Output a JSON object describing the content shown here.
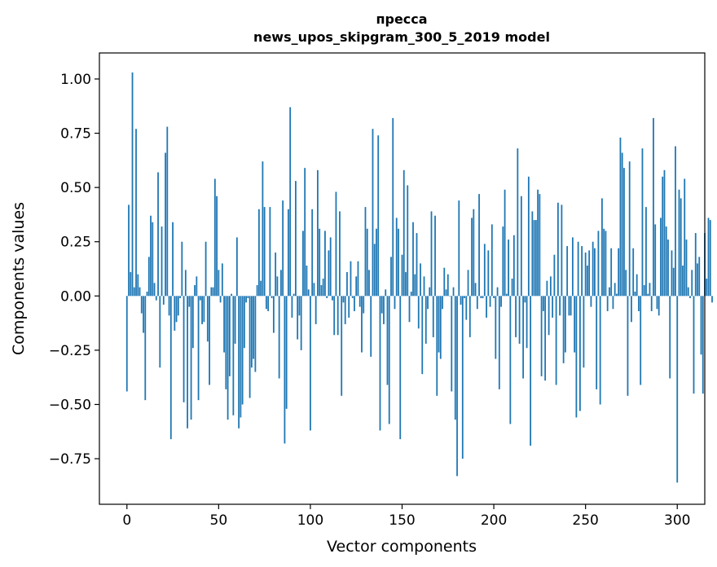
{
  "chart_data": {
    "type": "bar",
    "title": "пресса",
    "subtitle": "news_upos_skipgram_300_5_2019 model",
    "xlabel": "Vector components",
    "ylabel": "Components values",
    "xlim": [
      -15,
      315
    ],
    "ylim": [
      -0.96,
      1.12
    ],
    "xticks": [
      0,
      50,
      100,
      150,
      200,
      250,
      300
    ],
    "yticks": [
      -0.75,
      -0.5,
      -0.25,
      0.0,
      0.25,
      0.5,
      0.75,
      1.0
    ],
    "ytick_labels": [
      "−0.75",
      "−0.50",
      "−0.25",
      "0.00",
      "0.25",
      "0.50",
      "0.75",
      "1.00"
    ],
    "bar_color": "#1f77b4",
    "grid": false,
    "values": [
      -0.44,
      0.42,
      0.11,
      1.03,
      0.04,
      0.77,
      0.1,
      0.04,
      -0.08,
      -0.17,
      -0.48,
      0.02,
      0.18,
      0.37,
      0.34,
      0.06,
      -0.02,
      0.57,
      -0.33,
      0.32,
      -0.04,
      0.66,
      0.78,
      -0.09,
      -0.66,
      0.34,
      -0.16,
      -0.12,
      -0.09,
      -0.01,
      0.25,
      -0.49,
      0.12,
      -0.61,
      -0.05,
      -0.57,
      -0.24,
      0.05,
      0.09,
      -0.48,
      -0.02,
      -0.13,
      -0.12,
      0.25,
      -0.21,
      -0.41,
      0.04,
      0.04,
      0.54,
      0.46,
      0.12,
      -0.03,
      0.15,
      -0.26,
      -0.43,
      -0.57,
      -0.37,
      0.01,
      -0.55,
      -0.22,
      0.27,
      -0.61,
      -0.56,
      -0.5,
      -0.24,
      -0.03,
      -0.01,
      -0.47,
      -0.33,
      -0.29,
      -0.35,
      0.05,
      0.4,
      0.07,
      0.62,
      0.41,
      -0.06,
      -0.07,
      0.41,
      -0.01,
      -0.17,
      0.2,
      0.09,
      -0.38,
      0.12,
      0.44,
      -0.68,
      -0.52,
      0.4,
      0.87,
      -0.1,
      0.01,
      0.53,
      -0.2,
      -0.09,
      -0.25,
      0.3,
      0.59,
      0.14,
      0.03,
      -0.62,
      0.4,
      0.06,
      -0.13,
      0.58,
      0.31,
      0.05,
      0.08,
      0.3,
      -0.01,
      0.21,
      0.27,
      -0.02,
      -0.18,
      0.48,
      -0.18,
      0.39,
      -0.46,
      -0.03,
      -0.13,
      0.11,
      -0.1,
      0.16,
      -0.01,
      -0.07,
      0.09,
      0.16,
      -0.05,
      -0.26,
      -0.08,
      0.41,
      0.31,
      0.12,
      -0.28,
      0.77,
      0.24,
      0.31,
      0.74,
      -0.62,
      -0.08,
      -0.13,
      0.03,
      -0.41,
      -0.59,
      0.18,
      0.82,
      -0.06,
      0.36,
      0.31,
      -0.66,
      0.19,
      0.58,
      0.11,
      0.51,
      -0.12,
      0.02,
      0.34,
      0.1,
      0.29,
      -0.15,
      0.15,
      -0.36,
      0.09,
      -0.22,
      -0.06,
      0.04,
      0.39,
      -0.19,
      0.37,
      -0.46,
      -0.26,
      -0.29,
      -0.06,
      0.13,
      0.03,
      0.1,
      0.0,
      -0.44,
      0.04,
      -0.57,
      -0.83,
      0.44,
      -0.04,
      -0.75,
      -0.01,
      -0.11,
      0.12,
      -0.19,
      0.36,
      0.4,
      0.06,
      -0.06,
      0.47,
      -0.01,
      -0.01,
      0.24,
      -0.1,
      0.21,
      -0.05,
      0.33,
      -0.01,
      -0.29,
      0.04,
      -0.43,
      -0.05,
      0.32,
      0.49,
      0.01,
      0.26,
      -0.59,
      0.08,
      0.28,
      -0.19,
      0.68,
      -0.22,
      0.46,
      -0.38,
      -0.03,
      -0.24,
      0.55,
      -0.69,
      0.39,
      0.35,
      0.35,
      0.49,
      0.47,
      -0.37,
      -0.07,
      -0.39,
      0.07,
      -0.18,
      0.09,
      -0.1,
      0.19,
      -0.41,
      0.43,
      -0.09,
      0.42,
      -0.31,
      -0.26,
      0.23,
      -0.09,
      -0.09,
      0.27,
      -0.26,
      -0.56,
      0.25,
      -0.53,
      0.23,
      -0.33,
      0.2,
      0.14,
      0.21,
      -0.05,
      0.25,
      0.22,
      -0.43,
      0.3,
      -0.5,
      0.45,
      0.31,
      0.3,
      -0.07,
      0.04,
      0.22,
      -0.06,
      0.06,
      0.01,
      0.22,
      0.73,
      0.66,
      0.59,
      0.12,
      -0.46,
      0.62,
      -0.12,
      0.22,
      0.02,
      0.1,
      -0.07,
      -0.41,
      0.68,
      0.05,
      0.41,
      0.01,
      0.06,
      -0.07,
      0.82,
      0.33,
      -0.06,
      -0.09,
      0.36,
      0.55,
      0.58,
      0.32,
      0.26,
      -0.38,
      0.21,
      0.13,
      0.69,
      -0.86,
      0.49,
      0.45,
      0.14,
      0.54,
      0.26,
      0.04,
      -0.01,
      0.12,
      -0.45,
      0.29,
      0.15,
      0.18,
      -0.27,
      -0.45,
      0.29,
      0.08,
      0.36,
      0.35,
      -0.03
    ]
  }
}
